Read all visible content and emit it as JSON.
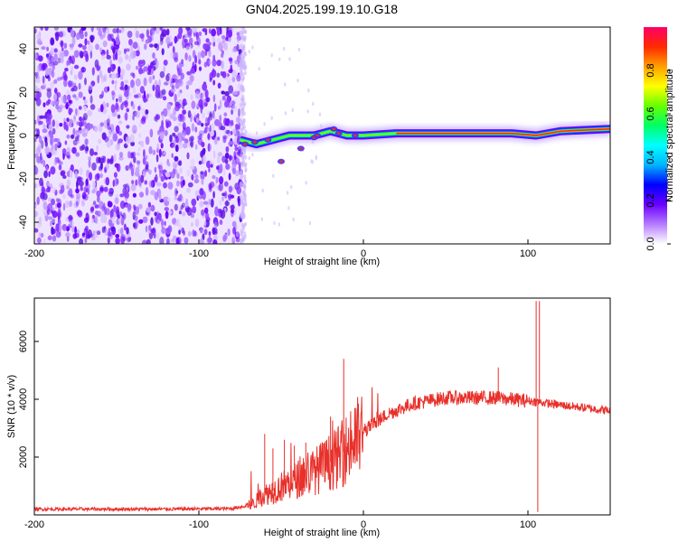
{
  "title": "GN04.2025.199.19.10.G18",
  "chart_data": [
    {
      "type": "heatmap",
      "xlabel": "Height of straight line (km)",
      "ylabel": "Frequency (Hz)",
      "xlim": [
        -200,
        150
      ],
      "ylim": [
        -50,
        50
      ],
      "xticks": [
        -200,
        -100,
        0,
        100
      ],
      "yticks": [
        -40,
        -20,
        0,
        20,
        40
      ],
      "colorbar": {
        "label": "Normalized spectral amplitude",
        "range": [
          0,
          1
        ],
        "ticks": [
          "0.0",
          "0.2",
          "0.4",
          "0.6",
          "0.8"
        ],
        "colors": [
          "#ffffff",
          "#b57cff",
          "#6a00ff",
          "#0000ff",
          "#00b4ff",
          "#00ffff",
          "#00ff66",
          "#66ff00",
          "#ffff00",
          "#ffa000",
          "#ff2a00",
          "#ff0066"
        ]
      },
      "noise_region": {
        "x_range": [
          -200,
          -73
        ],
        "y_range": [
          -50,
          50
        ]
      },
      "ridge": [
        {
          "x": -75,
          "y": -2
        },
        {
          "x": -65,
          "y": -4
        },
        {
          "x": -55,
          "y": -2
        },
        {
          "x": -45,
          "y": 0
        },
        {
          "x": -30,
          "y": 0
        },
        {
          "x": -20,
          "y": 2
        },
        {
          "x": -10,
          "y": 0
        },
        {
          "x": 0,
          "y": 0
        },
        {
          "x": 20,
          "y": 1
        },
        {
          "x": 60,
          "y": 1
        },
        {
          "x": 90,
          "y": 1
        },
        {
          "x": 105,
          "y": 0
        },
        {
          "x": 120,
          "y": 2
        },
        {
          "x": 150,
          "y": 3
        }
      ]
    },
    {
      "type": "line",
      "xlabel": "Height of straight line (km)",
      "ylabel": "SNR (10 * v/v)",
      "xlim": [
        -200,
        150
      ],
      "ylim": [
        0,
        7500
      ],
      "xticks": [
        -200,
        -100,
        0,
        100
      ],
      "yticks": [
        2000,
        4000,
        6000
      ],
      "color": "#e8302a",
      "envelope": [
        {
          "x": -200,
          "y": 200
        },
        {
          "x": -120,
          "y": 200
        },
        {
          "x": -80,
          "y": 220
        },
        {
          "x": -68,
          "y": 350
        },
        {
          "x": -60,
          "y": 700
        },
        {
          "x": -45,
          "y": 1100
        },
        {
          "x": -30,
          "y": 1500
        },
        {
          "x": -15,
          "y": 2000
        },
        {
          "x": -5,
          "y": 2600
        },
        {
          "x": 5,
          "y": 3100
        },
        {
          "x": 15,
          "y": 3500
        },
        {
          "x": 30,
          "y": 3850
        },
        {
          "x": 50,
          "y": 4050
        },
        {
          "x": 80,
          "y": 4050
        },
        {
          "x": 100,
          "y": 3950
        },
        {
          "x": 120,
          "y": 3800
        },
        {
          "x": 150,
          "y": 3600
        }
      ],
      "spikes": [
        {
          "x": -60,
          "y": 2800
        },
        {
          "x": -55,
          "y": 2300
        },
        {
          "x": -48,
          "y": 2600
        },
        {
          "x": -42,
          "y": 2400
        },
        {
          "x": -35,
          "y": 2500
        },
        {
          "x": -20,
          "y": 3400
        },
        {
          "x": -12,
          "y": 5400
        },
        {
          "x": 82,
          "y": 5100
        },
        {
          "x": 105,
          "y": 7400
        },
        {
          "x": 107,
          "y": 7400
        },
        {
          "x": 106,
          "y": 100
        }
      ]
    }
  ]
}
